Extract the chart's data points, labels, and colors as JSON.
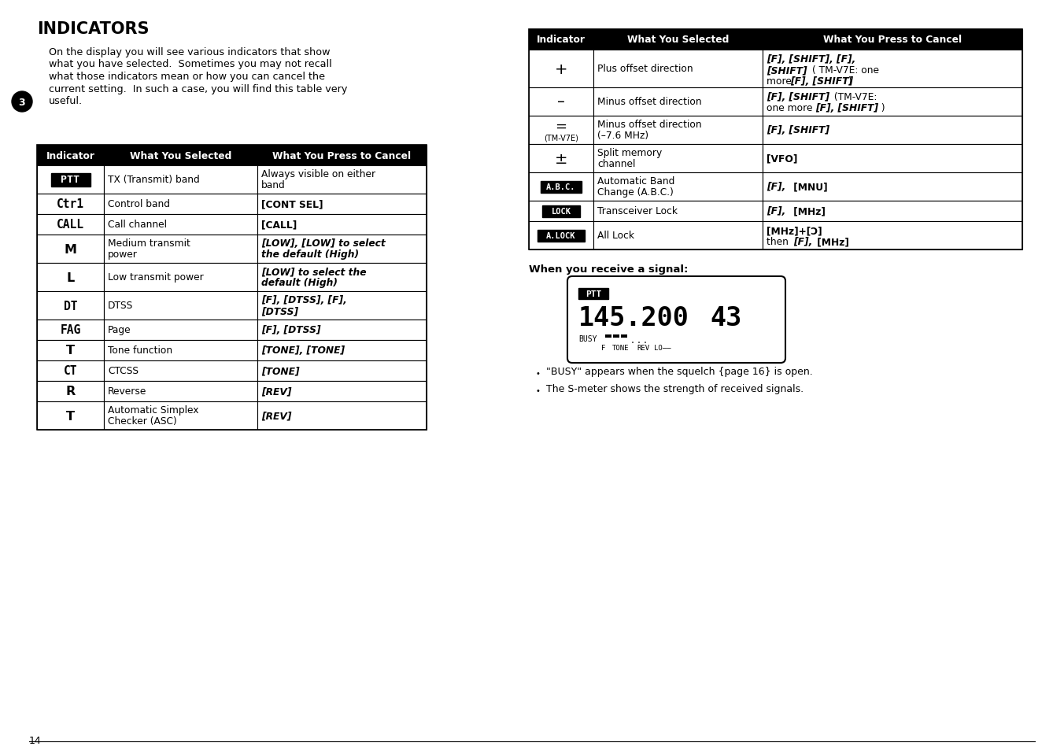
{
  "title": "INDICATORS",
  "page_number": "14",
  "chapter_number": "3",
  "intro_text_lines": [
    "On the display you will see various indicators that show",
    "what you have selected.  Sometimes you may not recall",
    "what those indicators mean or how you can cancel the",
    "current setting.  In such a case, you will find this table very",
    "useful."
  ],
  "left_table_headers": [
    "Indicator",
    "What You Selected",
    "What You Press to Cancel"
  ],
  "right_table_headers": [
    "Indicator",
    "What You Selected",
    "What You Press to Cancel"
  ],
  "signal_section_title": "When you receive a signal:",
  "bullet_points": [
    "\"BUSY\" appears when the squelch {page 16} is open.",
    "The S-meter shows the strength of received signals."
  ],
  "bg_color": "#ffffff",
  "text_color": "#000000"
}
